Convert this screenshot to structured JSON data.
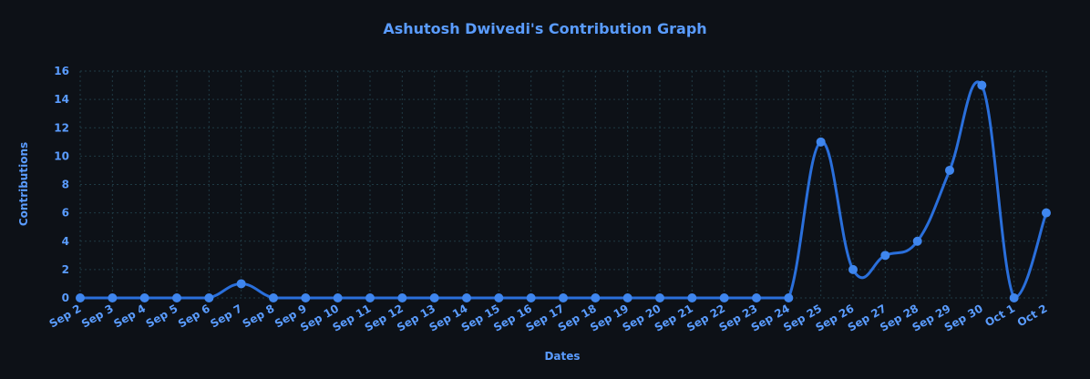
{
  "chart_data": {
    "type": "line",
    "title": "Ashutosh Dwivedi's Contribution Graph",
    "xlabel": "Dates",
    "ylabel": "Contributions",
    "ylim": [
      0,
      16
    ],
    "yticks": [
      0,
      2,
      4,
      6,
      8,
      10,
      12,
      14,
      16
    ],
    "grid": true,
    "categories": [
      "Sep 2",
      "Sep 3",
      "Sep 4",
      "Sep 5",
      "Sep 6",
      "Sep 7",
      "Sep 8",
      "Sep 9",
      "Sep 10",
      "Sep 11",
      "Sep 12",
      "Sep 13",
      "Sep 14",
      "Sep 15",
      "Sep 16",
      "Sep 17",
      "Sep 18",
      "Sep 19",
      "Sep 20",
      "Sep 21",
      "Sep 22",
      "Sep 23",
      "Sep 24",
      "Sep 25",
      "Sep 26",
      "Sep 27",
      "Sep 28",
      "Sep 29",
      "Sep 30",
      "Oct 1",
      "Oct 2"
    ],
    "series": [
      {
        "values": [
          0,
          0,
          0,
          0,
          0,
          1,
          0,
          0,
          0,
          0,
          0,
          0,
          0,
          0,
          0,
          0,
          0,
          0,
          0,
          0,
          0,
          0,
          0,
          11,
          2,
          3,
          4,
          9,
          15,
          0,
          6
        ]
      }
    ],
    "colors": {
      "background": "#0d1117",
      "line": "#2a6fdb",
      "point": "#3f86ee",
      "text": "#5a9cff",
      "grid": "#1f3a44"
    }
  }
}
